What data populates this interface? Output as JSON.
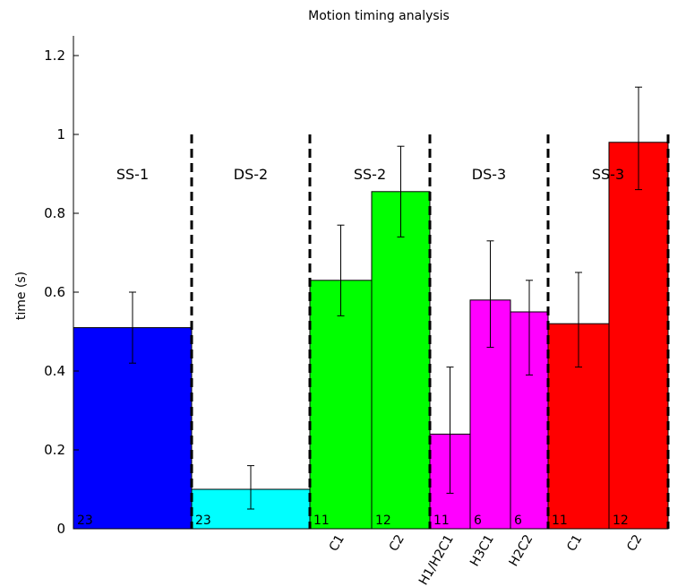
{
  "chart_data": {
    "type": "bar",
    "title": "Motion timing analysis",
    "xlabel": "",
    "ylabel": "time (s)",
    "ylim": [
      0,
      1.25
    ],
    "yticks": [
      "0",
      "0.2",
      "0.4",
      "0.6",
      "0.8",
      "1",
      "1.2"
    ],
    "grid": false,
    "sections": [
      "SS-1",
      "DS-2",
      "SS-2",
      "DS-3",
      "SS-3"
    ],
    "bars": [
      {
        "section": "SS-1",
        "label": "",
        "value": 0.51,
        "err_low": 0.42,
        "err_high": 0.6,
        "n": "23",
        "color": "#0000ff"
      },
      {
        "section": "DS-2",
        "label": "",
        "value": 0.1,
        "err_low": 0.05,
        "err_high": 0.16,
        "n": "23",
        "color": "#00ffff"
      },
      {
        "section": "SS-2",
        "label": "C1",
        "value": 0.63,
        "err_low": 0.54,
        "err_high": 0.77,
        "n": "11",
        "color": "#00ff00"
      },
      {
        "section": "SS-2",
        "label": "C2",
        "value": 0.855,
        "err_low": 0.74,
        "err_high": 0.97,
        "n": "12",
        "color": "#00ff00"
      },
      {
        "section": "DS-3",
        "label": "H1/H2C1",
        "value": 0.24,
        "err_low": 0.09,
        "err_high": 0.41,
        "n": "11",
        "color": "#ff00ff"
      },
      {
        "section": "DS-3",
        "label": "H3C1",
        "value": 0.58,
        "err_low": 0.46,
        "err_high": 0.73,
        "n": "6",
        "color": "#ff00ff"
      },
      {
        "section": "DS-3",
        "label": "H2C2",
        "value": 0.55,
        "err_low": 0.39,
        "err_high": 0.63,
        "n": "6",
        "color": "#ff00ff"
      },
      {
        "section": "SS-3",
        "label": "C1",
        "value": 0.52,
        "err_low": 0.41,
        "err_high": 0.65,
        "n": "11",
        "color": "#ff0000"
      },
      {
        "section": "SS-3",
        "label": "C2",
        "value": 0.98,
        "err_low": 0.86,
        "err_high": 1.12,
        "n": "12",
        "color": "#ff0000"
      }
    ]
  }
}
